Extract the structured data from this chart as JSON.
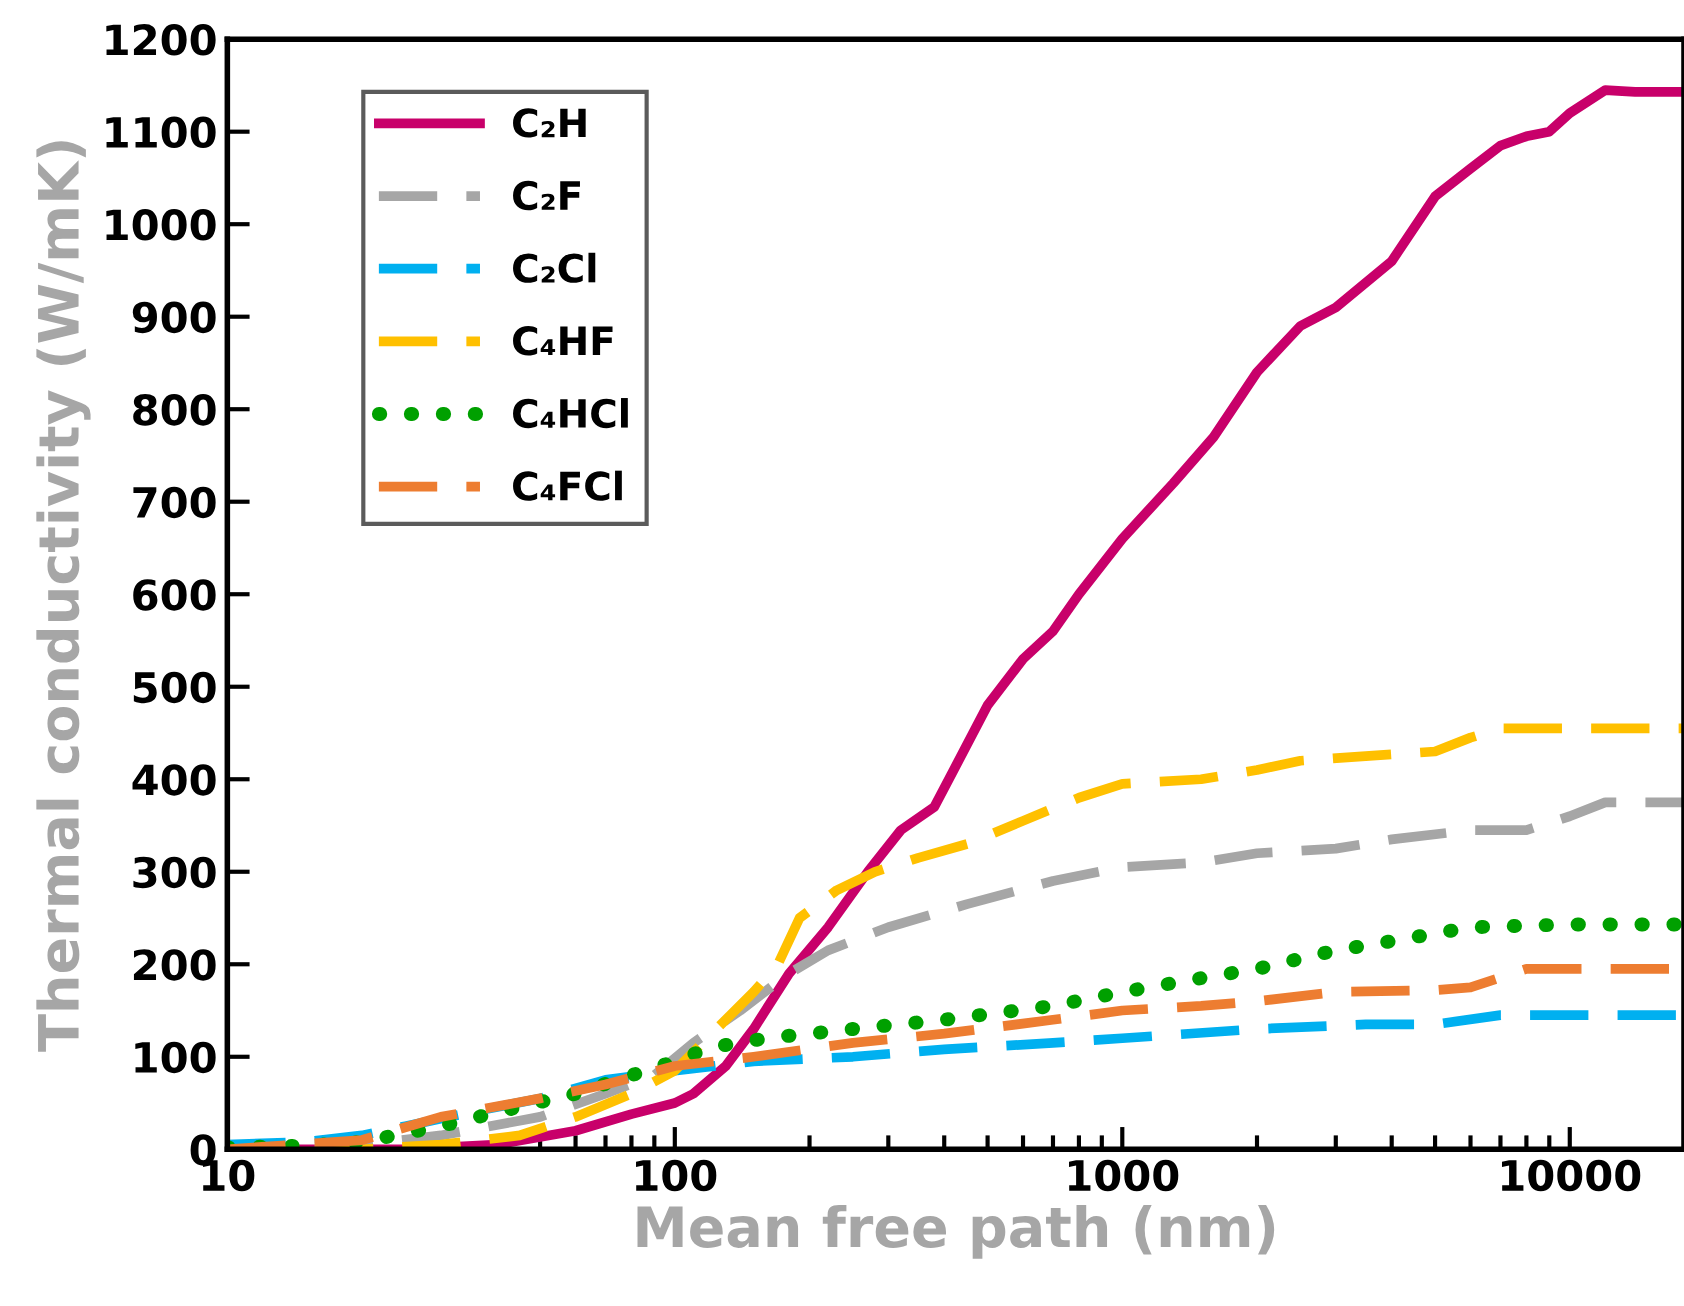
{
  "chart_data": {
    "type": "line",
    "xlabel": "Mean free path (nm)",
    "ylabel": "Thermal conductivity (W/mK)",
    "log": "x",
    "xlim": [
      10,
      18000
    ],
    "xticks": [
      10,
      100,
      1000,
      10000
    ],
    "ylim": [
      0,
      1200
    ],
    "yticks": [
      0,
      100,
      200,
      300,
      400,
      500,
      600,
      700,
      800,
      900,
      1000,
      1100,
      1200
    ],
    "grid": false,
    "legend": "top left",
    "marker": "none",
    "series": [
      {
        "name": "C₂H",
        "color": "#c8006a",
        "line_style": "solid",
        "x": [
          10,
          25,
          40,
          60,
          80,
          100,
          110,
          130,
          150,
          180,
          220,
          270,
          320,
          380,
          420,
          500,
          600,
          700,
          800,
          1000,
          1300,
          1600,
          2000,
          2500,
          3000,
          4000,
          5000,
          6000,
          7000,
          8000,
          9000,
          10000,
          12000,
          14000,
          18000
        ],
        "values": [
          0,
          0,
          5,
          20,
          38,
          50,
          60,
          90,
          130,
          190,
          240,
          300,
          345,
          370,
          410,
          480,
          530,
          560,
          600,
          660,
          720,
          770,
          840,
          890,
          910,
          960,
          1030,
          1060,
          1085,
          1095,
          1100,
          1120,
          1145,
          1143,
          1143
        ]
      },
      {
        "name": "C₂F",
        "color": "#a6a6a6",
        "line_style": "dashed",
        "x": [
          10,
          20,
          30,
          50,
          70,
          90,
          110,
          140,
          180,
          220,
          300,
          450,
          700,
          1000,
          1500,
          2000,
          3000,
          4000,
          6000,
          8000,
          10000,
          12000,
          18000
        ],
        "values": [
          0,
          5,
          15,
          35,
          60,
          80,
          115,
          150,
          190,
          215,
          240,
          265,
          290,
          305,
          310,
          320,
          325,
          335,
          345,
          345,
          360,
          375,
          375
        ]
      },
      {
        "name": "C₂Cl",
        "color": "#00b0f0",
        "line_style": "dashed",
        "x": [
          10,
          15,
          20,
          25,
          35,
          50,
          70,
          100,
          150,
          250,
          400,
          700,
          1000,
          2000,
          3500,
          5000,
          7000,
          18000
        ],
        "values": [
          5,
          8,
          15,
          25,
          40,
          55,
          75,
          85,
          95,
          100,
          108,
          115,
          120,
          130,
          135,
          135,
          145,
          145
        ]
      },
      {
        "name": "C₄HF",
        "color": "#ffc000",
        "line_style": "dashed",
        "x": [
          10,
          20,
          30,
          45,
          60,
          80,
          100,
          110,
          130,
          150,
          170,
          190,
          230,
          280,
          350,
          450,
          600,
          800,
          1000,
          1500,
          2000,
          2500,
          3500,
          5000,
          6000,
          7000,
          9000,
          18000
        ],
        "values": [
          0,
          0,
          5,
          15,
          35,
          60,
          85,
          105,
          140,
          170,
          200,
          250,
          280,
          300,
          315,
          330,
          355,
          380,
          395,
          400,
          410,
          420,
          425,
          430,
          445,
          455,
          455,
          455
        ]
      },
      {
        "name": "C₄HCl",
        "color": "#00a000",
        "line_style": "dotted",
        "x": [
          10,
          15,
          20,
          30,
          40,
          60,
          80,
          100,
          120,
          160,
          250,
          400,
          700,
          1000,
          1500,
          2000,
          3000,
          4000,
          6000,
          10000,
          18000
        ],
        "values": [
          2,
          4,
          8,
          25,
          40,
          60,
          80,
          95,
          110,
          120,
          130,
          140,
          155,
          170,
          185,
          195,
          215,
          225,
          240,
          243,
          243
        ]
      },
      {
        "name": "C₄FCl",
        "color": "#ed7d31",
        "line_style": "dashed",
        "x": [
          10,
          20,
          30,
          50,
          70,
          100,
          150,
          250,
          400,
          700,
          1000,
          1500,
          2000,
          3000,
          5000,
          6000,
          8000,
          18000
        ],
        "values": [
          0,
          10,
          35,
          55,
          70,
          90,
          100,
          115,
          125,
          140,
          150,
          155,
          160,
          170,
          172,
          175,
          195,
          195
        ]
      }
    ]
  }
}
